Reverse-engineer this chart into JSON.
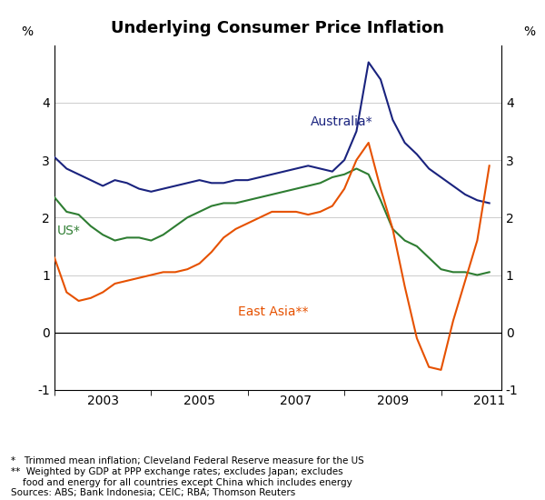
{
  "title": "Underlying Consumer Price Inflation",
  "ylabel_left": "%",
  "ylabel_right": "%",
  "ylim": [
    -1,
    5
  ],
  "yticks": [
    -1,
    0,
    1,
    2,
    3,
    4
  ],
  "color_australia": "#1a237e",
  "color_us": "#2e7d32",
  "color_eastasia": "#e65100",
  "footnote_lines": [
    "*   Trimmed mean inflation; Cleveland Federal Reserve measure for the US",
    "**  Weighted by GDP at PPP exchange rates; excludes Japan; excludes",
    "    food and energy for all countries except China which includes energy",
    "Sources: ABS; Bank Indonesia; CEIC; RBA; Thomson Reuters"
  ],
  "australia_x": [
    2002.0,
    2002.25,
    2002.5,
    2002.75,
    2003.0,
    2003.25,
    2003.5,
    2003.75,
    2004.0,
    2004.25,
    2004.5,
    2004.75,
    2005.0,
    2005.25,
    2005.5,
    2005.75,
    2006.0,
    2006.25,
    2006.5,
    2006.75,
    2007.0,
    2007.25,
    2007.5,
    2007.75,
    2008.0,
    2008.25,
    2008.5,
    2008.75,
    2009.0,
    2009.25,
    2009.5,
    2009.75,
    2010.0,
    2010.25,
    2010.5,
    2010.75,
    2011.0
  ],
  "australia_y": [
    3.05,
    2.85,
    2.75,
    2.65,
    2.55,
    2.65,
    2.6,
    2.5,
    2.45,
    2.5,
    2.55,
    2.6,
    2.65,
    2.6,
    2.6,
    2.65,
    2.65,
    2.7,
    2.75,
    2.8,
    2.85,
    2.9,
    2.85,
    2.8,
    3.0,
    3.5,
    4.7,
    4.4,
    3.7,
    3.3,
    3.1,
    2.85,
    2.7,
    2.55,
    2.4,
    2.3,
    2.25
  ],
  "us_x": [
    2002.0,
    2002.25,
    2002.5,
    2002.75,
    2003.0,
    2003.25,
    2003.5,
    2003.75,
    2004.0,
    2004.25,
    2004.5,
    2004.75,
    2005.0,
    2005.25,
    2005.5,
    2005.75,
    2006.0,
    2006.25,
    2006.5,
    2006.75,
    2007.0,
    2007.25,
    2007.5,
    2007.75,
    2008.0,
    2008.25,
    2008.5,
    2008.75,
    2009.0,
    2009.25,
    2009.5,
    2009.75,
    2010.0,
    2010.25,
    2010.5,
    2010.75,
    2011.0
  ],
  "us_y": [
    2.35,
    2.1,
    2.05,
    1.85,
    1.7,
    1.6,
    1.65,
    1.65,
    1.6,
    1.7,
    1.85,
    2.0,
    2.1,
    2.2,
    2.25,
    2.25,
    2.3,
    2.35,
    2.4,
    2.45,
    2.5,
    2.55,
    2.6,
    2.7,
    2.75,
    2.85,
    2.75,
    2.3,
    1.8,
    1.6,
    1.5,
    1.3,
    1.1,
    1.05,
    1.05,
    1.0,
    1.05
  ],
  "eastasia_x": [
    2002.0,
    2002.25,
    2002.5,
    2002.75,
    2003.0,
    2003.25,
    2003.5,
    2003.75,
    2004.0,
    2004.25,
    2004.5,
    2004.75,
    2005.0,
    2005.25,
    2005.5,
    2005.75,
    2006.0,
    2006.25,
    2006.5,
    2006.75,
    2007.0,
    2007.25,
    2007.5,
    2007.75,
    2008.0,
    2008.25,
    2008.5,
    2008.75,
    2009.0,
    2009.25,
    2009.5,
    2009.75,
    2010.0,
    2010.25,
    2010.5,
    2010.75,
    2011.0
  ],
  "eastasia_y": [
    1.3,
    0.7,
    0.55,
    0.6,
    0.7,
    0.85,
    0.9,
    0.95,
    1.0,
    1.05,
    1.05,
    1.1,
    1.2,
    1.4,
    1.65,
    1.8,
    1.9,
    2.0,
    2.1,
    2.1,
    2.1,
    2.05,
    2.1,
    2.2,
    2.5,
    3.0,
    3.3,
    2.5,
    1.8,
    0.8,
    -0.1,
    -0.6,
    -0.65,
    0.2,
    0.9,
    1.6,
    2.9
  ]
}
